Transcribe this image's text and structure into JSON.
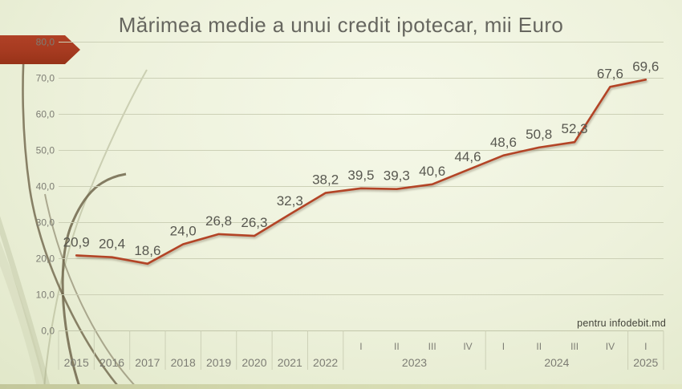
{
  "title": "Mărimea medie a unui credit ipotecar, mii Euro",
  "watermark": "pentru infodebit.md",
  "colors": {
    "line": "#b34426",
    "arrow": "#a63a20",
    "grid": "#ccd0b6",
    "axis_line": "#c2c6aa",
    "data_label": "#585850",
    "axis_text": "#7d7d74",
    "title_text": "#66665f"
  },
  "chart_data": {
    "type": "line",
    "title": "Mărimea medie a unui credit ipotecar, mii Euro",
    "categories": [
      "2015",
      "2016",
      "2017",
      "2018",
      "2019",
      "2020",
      "2021",
      "2022",
      "2023 I",
      "2023 II",
      "2023 III",
      "2023 IV",
      "2024 I",
      "2024 II",
      "2024 III",
      "2024 IV",
      "2025 I"
    ],
    "values": [
      20.9,
      20.4,
      18.6,
      24.0,
      26.8,
      26.3,
      32.3,
      38.2,
      39.5,
      39.3,
      40.6,
      44.6,
      48.6,
      50.8,
      52.3,
      67.6,
      69.6
    ],
    "data_labels": [
      "20,9",
      "20,4",
      "18,6",
      "24,0",
      "26,8",
      "26,3",
      "32,3",
      "38,2",
      "39,5",
      "39,3",
      "40,6",
      "44,6",
      "48,6",
      "50,8",
      "52,3",
      "67,6",
      "69,6"
    ],
    "x_axis": {
      "years": [
        "2015",
        "2016",
        "2017",
        "2018",
        "2019",
        "2020",
        "2021",
        "2022"
      ],
      "quarter_groups": [
        {
          "year": "2023",
          "quarters": [
            "I",
            "II",
            "III",
            "IV"
          ]
        },
        {
          "year": "2024",
          "quarters": [
            "I",
            "II",
            "III",
            "IV"
          ]
        },
        {
          "year": "2025",
          "quarters": [
            "I"
          ]
        }
      ]
    },
    "y_ticks": [
      "0,0",
      "10,0",
      "20,0",
      "30,0",
      "40,0",
      "50,0",
      "60,0",
      "70,0",
      "80,0"
    ],
    "ylim": [
      0,
      80
    ],
    "grid": true,
    "legend": "none",
    "series_color": "#b34426"
  }
}
